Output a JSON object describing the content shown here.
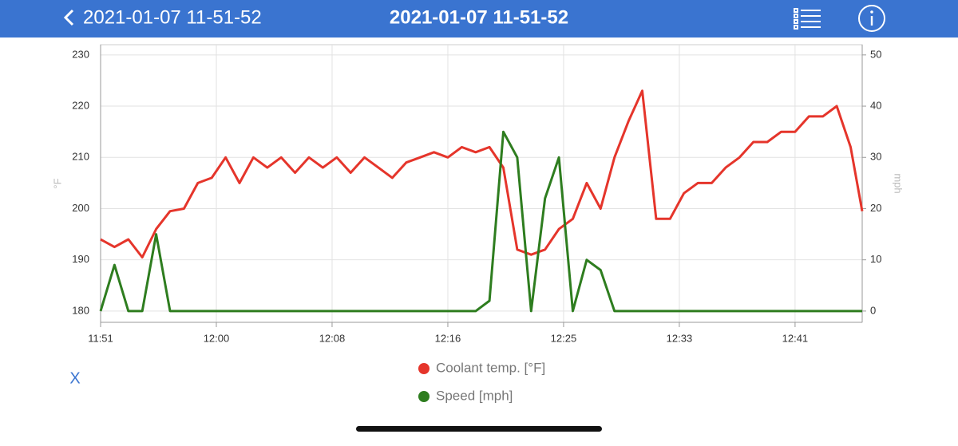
{
  "header": {
    "back_label": "2021-01-07 11-51-52",
    "title": "2021-01-07 11-51-52"
  },
  "close_label": "X",
  "chart_data": {
    "type": "line",
    "y_label": "°F",
    "y2_label": "mph",
    "x": [
      0,
      60,
      120,
      180,
      240,
      300,
      360,
      420,
      480,
      540,
      600,
      660,
      720,
      780,
      840,
      900,
      960,
      1020,
      1080,
      1140,
      1200,
      1260,
      1320,
      1380,
      1440,
      1500,
      1560,
      1620,
      1680,
      1740,
      1800,
      1860,
      1920,
      1980,
      2040,
      2100,
      2160,
      2220,
      2280,
      2340,
      2400,
      2460,
      2520,
      2580,
      2640,
      2700,
      2760,
      2820,
      2880,
      2940,
      3000,
      3060,
      3120,
      3180,
      3240,
      3290
    ],
    "xlim": [
      0,
      3290
    ],
    "xticks": [
      {
        "value": 0,
        "label": "11:51"
      },
      {
        "value": 500,
        "label": "12:00"
      },
      {
        "value": 1000,
        "label": "12:08"
      },
      {
        "value": 1500,
        "label": "12:16"
      },
      {
        "value": 2000,
        "label": "12:25"
      },
      {
        "value": 2500,
        "label": "12:33"
      },
      {
        "value": 3000,
        "label": "12:41"
      }
    ],
    "ylim": [
      177.8,
      232
    ],
    "yticks": [
      180,
      190,
      200,
      210,
      220,
      230
    ],
    "y2lim": [
      -2.2,
      52
    ],
    "y2ticks": [
      0,
      10,
      20,
      30,
      40,
      50
    ],
    "grid": true,
    "series": [
      {
        "name": "Coolant temp. [°F]",
        "color": "#e5352b",
        "values": [
          194,
          192.5,
          194,
          190.5,
          196,
          199.5,
          200,
          205,
          206,
          210,
          205,
          210,
          208,
          210,
          207,
          210,
          208,
          210,
          207,
          210,
          208,
          206,
          209,
          210,
          211,
          210,
          212,
          211,
          212,
          208,
          192,
          191,
          192,
          196,
          198,
          205,
          200,
          210,
          217,
          223,
          198,
          198,
          203,
          205,
          205,
          208,
          210,
          213,
          213,
          215,
          215,
          218,
          218,
          220,
          212,
          199.5
        ]
      },
      {
        "name": "Speed [mph]",
        "color": "#2e7d1f",
        "axis": "y2",
        "values": [
          0,
          9,
          0,
          0,
          15,
          0,
          0,
          0,
          0,
          0,
          0,
          0,
          0,
          0,
          0,
          0,
          0,
          0,
          0,
          0,
          0,
          0,
          0,
          0,
          0,
          0,
          0,
          0,
          2,
          35,
          30,
          0,
          22,
          30,
          0,
          10,
          8,
          0,
          0,
          0,
          0,
          0,
          0,
          0,
          0,
          0,
          0,
          0,
          0,
          0,
          0,
          0,
          0,
          0,
          0,
          0
        ]
      }
    ]
  }
}
